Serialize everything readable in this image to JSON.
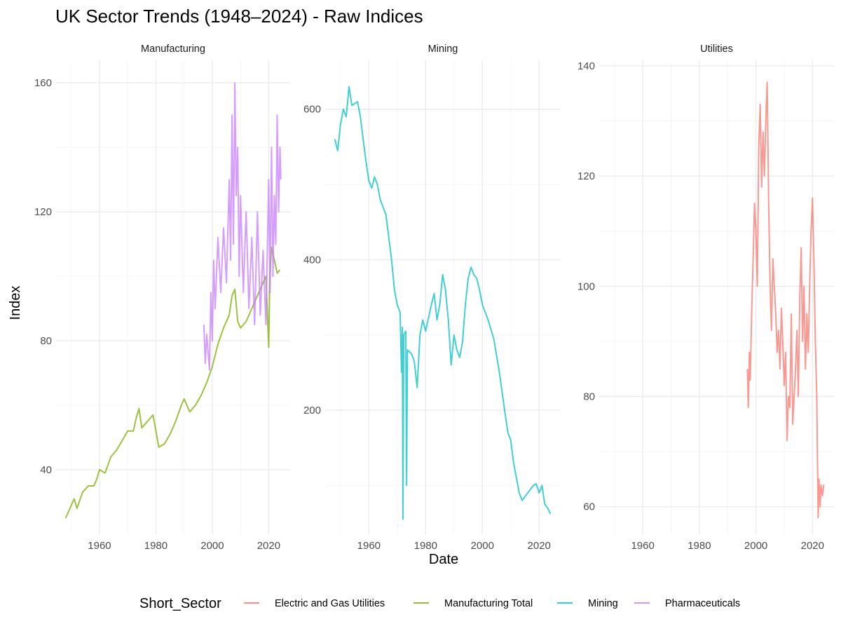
{
  "chart_data": {
    "type": "line",
    "title": "UK Sector Trends (1948–2024) - Raw Indices",
    "xlabel": "Date",
    "ylabel": "Index",
    "legend": {
      "title": "Short_Sector",
      "position": "bottom",
      "entries": [
        {
          "name": "Electric and Gas Utilities",
          "color": "#F8766D"
        },
        {
          "name": "Manufacturing Total",
          "color": "#7CAE00"
        },
        {
          "name": "Mining",
          "color": "#00BFC4"
        },
        {
          "name": "Pharmaceuticals",
          "color": "#C77CFF"
        }
      ]
    },
    "grid": true,
    "panels": [
      {
        "name": "Manufacturing",
        "xlim": [
          1944.6,
          2027.6
        ],
        "ylim": [
          20,
          167
        ],
        "x_ticks": [
          1960,
          1980,
          2000,
          2020
        ],
        "y_ticks": [
          40,
          80,
          120,
          160
        ],
        "series": [
          {
            "name": "Manufacturing Total",
            "color": "#7CAE00",
            "points": [
              [
                1948,
                25
              ],
              [
                1950,
                29
              ],
              [
                1951,
                31
              ],
              [
                1952,
                28
              ],
              [
                1954,
                33
              ],
              [
                1956,
                35
              ],
              [
                1958,
                35
              ],
              [
                1959,
                37
              ],
              [
                1960,
                40
              ],
              [
                1962,
                39
              ],
              [
                1964,
                44
              ],
              [
                1966,
                46
              ],
              [
                1968,
                49
              ],
              [
                1970,
                52
              ],
              [
                1972,
                52
              ],
              [
                1973,
                56
              ],
              [
                1974,
                59
              ],
              [
                1975,
                53
              ],
              [
                1977,
                55
              ],
              [
                1979,
                57
              ],
              [
                1980,
                52
              ],
              [
                1981,
                47
              ],
              [
                1983,
                48
              ],
              [
                1985,
                51
              ],
              [
                1987,
                55
              ],
              [
                1989,
                60
              ],
              [
                1990,
                62
              ],
              [
                1991,
                60
              ],
              [
                1992,
                58
              ],
              [
                1994,
                60
              ],
              [
                1996,
                63
              ],
              [
                1998,
                67
              ],
              [
                2000,
                72
              ],
              [
                2002,
                79
              ],
              [
                2004,
                84
              ],
              [
                2006,
                88
              ],
              [
                2007,
                94
              ],
              [
                2008,
                96
              ],
              [
                2009,
                86
              ],
              [
                2010,
                84
              ],
              [
                2012,
                86
              ],
              [
                2014,
                90
              ],
              [
                2016,
                94
              ],
              [
                2018,
                98
              ],
              [
                2019,
                100
              ],
              [
                2020,
                78
              ],
              [
                2020.4,
                100
              ],
              [
                2021,
                109
              ],
              [
                2022,
                105
              ],
              [
                2023,
                101
              ],
              [
                2024,
                102
              ]
            ]
          },
          {
            "name": "Pharmaceuticals",
            "color": "#C77CFF",
            "points": [
              [
                1997,
                85
              ],
              [
                1997.5,
                73
              ],
              [
                1998,
                82
              ],
              [
                1999,
                71
              ],
              [
                1999.5,
                95
              ],
              [
                2000,
                80
              ],
              [
                2000.5,
                105
              ],
              [
                2001,
                90
              ],
              [
                2002,
                112
              ],
              [
                2003,
                95
              ],
              [
                2004,
                115
              ],
              [
                2005,
                98
              ],
              [
                2006,
                130
              ],
              [
                2006.5,
                105
              ],
              [
                2007,
                150
              ],
              [
                2007.5,
                110
              ],
              [
                2008,
                160
              ],
              [
                2008.5,
                125
              ],
              [
                2009,
                140
              ],
              [
                2009.5,
                100
              ],
              [
                2010,
                125
              ],
              [
                2011,
                95
              ],
              [
                2012,
                120
              ],
              [
                2013,
                90
              ],
              [
                2014,
                112
              ],
              [
                2015,
                85
              ],
              [
                2016,
                120
              ],
              [
                2017,
                88
              ],
              [
                2018,
                108
              ],
              [
                2019,
                85
              ],
              [
                2020,
                130
              ],
              [
                2020.5,
                95
              ],
              [
                2021,
                140
              ],
              [
                2021.5,
                100
              ],
              [
                2022,
                125
              ],
              [
                2022.5,
                110
              ],
              [
                2023,
                150
              ],
              [
                2023.5,
                120
              ],
              [
                2024,
                140
              ],
              [
                2024.3,
                130
              ]
            ]
          }
        ]
      },
      {
        "name": "Mining",
        "xlim": [
          1944.6,
          2027.6
        ],
        "ylim": [
          35,
          665
        ],
        "x_ticks": [
          1960,
          1980,
          2000,
          2020
        ],
        "y_ticks": [
          200,
          400,
          600
        ],
        "series": [
          {
            "name": "Mining",
            "color": "#00BFC4",
            "points": [
              [
                1948,
                560
              ],
              [
                1949,
                545
              ],
              [
                1950,
                580
              ],
              [
                1951,
                600
              ],
              [
                1952,
                590
              ],
              [
                1953,
                630
              ],
              [
                1954,
                605
              ],
              [
                1956,
                610
              ],
              [
                1957,
                590
              ],
              [
                1958,
                560
              ],
              [
                1959,
                530
              ],
              [
                1960,
                505
              ],
              [
                1961,
                495
              ],
              [
                1962,
                510
              ],
              [
                1963,
                500
              ],
              [
                1964,
                480
              ],
              [
                1966,
                460
              ],
              [
                1967,
                430
              ],
              [
                1968,
                400
              ],
              [
                1969,
                360
              ],
              [
                1970,
                340
              ],
              [
                1971,
                330
              ],
              [
                1971.5,
                250
              ],
              [
                1971.8,
                310
              ],
              [
                1972,
                55
              ],
              [
                1972.3,
                300
              ],
              [
                1973,
                305
              ],
              [
                1973.3,
                100
              ],
              [
                1973.6,
                280
              ],
              [
                1975,
                275
              ],
              [
                1976,
                265
              ],
              [
                1977,
                230
              ],
              [
                1978,
                300
              ],
              [
                1979,
                320
              ],
              [
                1980,
                305
              ],
              [
                1982,
                340
              ],
              [
                1983,
                355
              ],
              [
                1984,
                320
              ],
              [
                1985,
                340
              ],
              [
                1986,
                380
              ],
              [
                1987,
                360
              ],
              [
                1988,
                320
              ],
              [
                1989,
                260
              ],
              [
                1990,
                300
              ],
              [
                1991,
                280
              ],
              [
                1992,
                270
              ],
              [
                1993,
                290
              ],
              [
                1994,
                340
              ],
              [
                1995,
                375
              ],
              [
                1996,
                390
              ],
              [
                1997,
                380
              ],
              [
                1998,
                375
              ],
              [
                1999,
                360
              ],
              [
                2000,
                340
              ],
              [
                2002,
                320
              ],
              [
                2004,
                295
              ],
              [
                2006,
                250
              ],
              [
                2008,
                195
              ],
              [
                2009,
                170
              ],
              [
                2010,
                160
              ],
              [
                2011,
                130
              ],
              [
                2012,
                110
              ],
              [
                2013,
                90
              ],
              [
                2014,
                80
              ],
              [
                2015,
                85
              ],
              [
                2017,
                95
              ],
              [
                2018,
                100
              ],
              [
                2019,
                102
              ],
              [
                2020,
                90
              ],
              [
                2021,
                100
              ],
              [
                2022,
                75
              ],
              [
                2023,
                70
              ],
              [
                2024,
                62
              ]
            ]
          }
        ]
      },
      {
        "name": "Utilities",
        "xlim": [
          1944.6,
          2027.6
        ],
        "ylim": [
          55,
          141
        ],
        "x_ticks": [
          1960,
          1980,
          2000,
          2020
        ],
        "y_ticks": [
          60,
          80,
          100,
          120,
          140
        ],
        "series": [
          {
            "name": "Electric and Gas Utilities",
            "color": "#F8766D",
            "points": [
              [
                1997,
                85
              ],
              [
                1997.3,
                78
              ],
              [
                1997.7,
                88
              ],
              [
                1998,
                83
              ],
              [
                1998.5,
                95
              ],
              [
                1999,
                105
              ],
              [
                1999.5,
                115
              ],
              [
                2000,
                110
              ],
              [
                2000.5,
                100
              ],
              [
                2001,
                125
              ],
              [
                2001.5,
                133
              ],
              [
                2002,
                118
              ],
              [
                2002.5,
                128
              ],
              [
                2003,
                120
              ],
              [
                2003.5,
                130
              ],
              [
                2004,
                137
              ],
              [
                2004.5,
                115
              ],
              [
                2005,
                100
              ],
              [
                2005.5,
                92
              ],
              [
                2006,
                105
              ],
              [
                2006.5,
                100
              ],
              [
                2007,
                95
              ],
              [
                2007.5,
                88
              ],
              [
                2008,
                92
              ],
              [
                2008.5,
                85
              ],
              [
                2009,
                96
              ],
              [
                2009.5,
                90
              ],
              [
                2010,
                82
              ],
              [
                2010.5,
                88
              ],
              [
                2011,
                72
              ],
              [
                2011.5,
                80
              ],
              [
                2012,
                78
              ],
              [
                2012.5,
                95
              ],
              [
                2013,
                75
              ],
              [
                2014,
                85
              ],
              [
                2014.5,
                92
              ],
              [
                2015,
                80
              ],
              [
                2015.5,
                98
              ],
              [
                2016,
                107
              ],
              [
                2016.5,
                90
              ],
              [
                2017,
                100
              ],
              [
                2017.5,
                85
              ],
              [
                2018,
                95
              ],
              [
                2018.5,
                88
              ],
              [
                2019,
                100
              ],
              [
                2019.5,
                110
              ],
              [
                2020,
                116
              ],
              [
                2020.5,
                105
              ],
              [
                2021,
                90
              ],
              [
                2021.5,
                80
              ],
              [
                2022,
                58
              ],
              [
                2022.3,
                65
              ],
              [
                2022.7,
                60
              ],
              [
                2023,
                64
              ],
              [
                2023.5,
                62
              ],
              [
                2024,
                64
              ]
            ]
          }
        ]
      }
    ]
  }
}
